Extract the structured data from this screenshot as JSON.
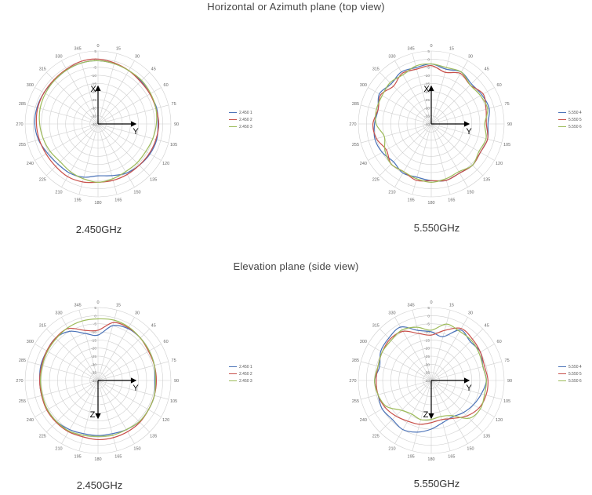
{
  "titles": {
    "top": "Horizontal or Azimuth plane (top view)",
    "bottom": "Elevation plane (side view)"
  },
  "colors": {
    "blue": "#4a72b8",
    "red": "#c8504a",
    "green": "#9dbb59",
    "grid": "#cfcfcf",
    "axis": "#000000"
  },
  "chart_data": [
    {
      "type": "polar-line",
      "id": "az-2450",
      "frequency_label": "2.450GHz",
      "axis_labels": {
        "up": "X",
        "right": "Y"
      },
      "radial_ticks": [
        "5",
        "0",
        "-5",
        "-10",
        "-15",
        "-20",
        "-25",
        "-30",
        "-35",
        "-40"
      ],
      "rlim": [
        -40,
        5
      ],
      "angle_labels": [
        "0",
        "15",
        "30",
        "45",
        "60",
        "75",
        "90",
        "105",
        "120",
        "135",
        "150",
        "165",
        "180",
        "195",
        "210",
        "225",
        "240",
        "255",
        "270",
        "285",
        "300",
        "315",
        "330",
        "345"
      ],
      "series": [
        {
          "name": "2.450 1",
          "color": "#4a72b8",
          "values": [
            -1,
            -1.5,
            -2,
            -2.5,
            -3,
            -2.5,
            -3,
            -2.5,
            -3,
            -4,
            -5,
            -7,
            -8,
            -6,
            -5,
            -5,
            -4,
            -2,
            -1,
            -1,
            -1.5,
            -2,
            -1.5,
            -1
          ]
        },
        {
          "name": "2.450 2",
          "color": "#c8504a",
          "values": [
            0,
            -1,
            -2,
            -3,
            -3,
            -3,
            -2.5,
            -3,
            -3.5,
            -4,
            -4,
            -4,
            -4,
            -3,
            -2.5,
            -3,
            -3,
            -2.5,
            -2,
            -1.5,
            -1.5,
            -1.5,
            -1,
            0
          ]
        },
        {
          "name": "2.450 3",
          "color": "#9dbb59",
          "values": [
            -1,
            -1.5,
            -2,
            -2,
            -2.5,
            -3,
            -4,
            -5,
            -6,
            -6,
            -6,
            -5,
            -4,
            -5,
            -6,
            -7,
            -6,
            -5,
            -4,
            -3,
            -2.5,
            -2,
            -1.5,
            -1
          ]
        }
      ]
    },
    {
      "type": "polar-line",
      "id": "az-5550",
      "frequency_label": "5.550GHz",
      "axis_labels": {
        "up": "X",
        "right": "Y"
      },
      "radial_ticks": [
        "5",
        "0",
        "-5",
        "-10",
        "-15",
        "-20",
        "-25",
        "-30",
        "-35",
        "-40"
      ],
      "rlim": [
        -40,
        5
      ],
      "angle_labels": [
        "0",
        "15",
        "30",
        "45",
        "60",
        "75",
        "90",
        "105",
        "120",
        "135",
        "150",
        "165",
        "180",
        "195",
        "210",
        "225",
        "240",
        "255",
        "270",
        "285",
        "300",
        "315",
        "330",
        "345"
      ],
      "series": [
        {
          "name": "5.550 4",
          "color": "#4a72b8",
          "values": [
            -3,
            -5,
            -3,
            -5,
            -4,
            -3,
            -5,
            -4,
            -5,
            -4,
            -5,
            -4,
            -5,
            -6,
            -5,
            -7,
            -5,
            -4,
            -5,
            -6,
            -3,
            -5,
            -3,
            -4
          ]
        },
        {
          "name": "5.550 5",
          "color": "#c8504a",
          "values": [
            -4,
            -7,
            -4,
            -6,
            -3,
            -5,
            -6,
            -4,
            -5,
            -4,
            -5,
            -4,
            -5,
            -4,
            -6,
            -5,
            -8,
            -5,
            -4,
            -6,
            -4,
            -7,
            -4,
            -5
          ]
        },
        {
          "name": "5.550 6",
          "color": "#9dbb59",
          "values": [
            -3,
            -4,
            -3,
            -6,
            -5,
            -4,
            -7,
            -5,
            -6,
            -4,
            -6,
            -5,
            -4,
            -5,
            -6,
            -5,
            -7,
            -10,
            -6,
            -5,
            -5,
            -4,
            -5,
            -3
          ]
        }
      ]
    },
    {
      "type": "polar-line",
      "id": "el-2450",
      "frequency_label": "2.450GHz",
      "axis_labels": {
        "down": "Z",
        "right": "Y"
      },
      "radial_ticks": [
        "5",
        "0",
        "-5",
        "-10",
        "-15",
        "-20",
        "-25",
        "-30",
        "-35",
        "-40"
      ],
      "rlim": [
        -40,
        5
      ],
      "angle_labels": [
        "0",
        "15",
        "30",
        "45",
        "60",
        "75",
        "90",
        "105",
        "120",
        "135",
        "150",
        "165",
        "180",
        "195",
        "210",
        "225",
        "240",
        "255",
        "270",
        "285",
        "300",
        "315",
        "330",
        "345"
      ],
      "series": [
        {
          "name": "2.450 1",
          "color": "#4a72b8",
          "values": [
            -12,
            -5,
            -3,
            -3,
            -3.5,
            -4,
            -5,
            -4,
            -4,
            -4,
            -5,
            -6,
            -6,
            -6,
            -5,
            -4,
            -4,
            -4,
            -4,
            -3.5,
            -3.5,
            -3,
            -5,
            -10
          ]
        },
        {
          "name": "2.450 2",
          "color": "#c8504a",
          "values": [
            -9,
            -3,
            -2.5,
            -3,
            -4,
            -4,
            -4,
            -4,
            -4,
            -3.5,
            -3.5,
            -3.5,
            -3.5,
            -4,
            -3.5,
            -3.5,
            -3.5,
            -4,
            -4,
            -4,
            -3.5,
            -3,
            -3,
            -8
          ]
        },
        {
          "name": "2.450 3",
          "color": "#9dbb59",
          "values": [
            -2,
            -1.5,
            -2,
            -3,
            -3.5,
            -4,
            -4.5,
            -4,
            -4,
            -4,
            -5,
            -5,
            -5.5,
            -5,
            -4,
            -4,
            -4,
            -4.5,
            -4.5,
            -4.5,
            -4,
            -3.5,
            -2.5,
            -2
          ]
        }
      ]
    },
    {
      "type": "polar-line",
      "id": "el-5550",
      "frequency_label": "5.550GHz",
      "axis_labels": {
        "down": "Z",
        "right": "Y"
      },
      "radial_ticks": [
        "5",
        "0",
        "-5",
        "-10",
        "-15",
        "-20",
        "-25",
        "-30",
        "-35",
        "-40"
      ],
      "rlim": [
        -40,
        5
      ],
      "angle_labels": [
        "0",
        "15",
        "30",
        "45",
        "60",
        "75",
        "90",
        "105",
        "120",
        "135",
        "150",
        "165",
        "180",
        "195",
        "210",
        "225",
        "240",
        "255",
        "270",
        "285",
        "300",
        "315",
        "330",
        "345"
      ],
      "series": [
        {
          "name": "5.550 4",
          "color": "#4a72b8",
          "values": [
            -10,
            -12,
            -4,
            -6,
            -5,
            -7,
            -6,
            -8,
            -10,
            -12,
            -14,
            -13,
            -10,
            -7,
            -5,
            -6,
            -5,
            -6,
            -5,
            -7,
            -4,
            -3,
            -2,
            -8
          ]
        },
        {
          "name": "5.550 5",
          "color": "#c8504a",
          "values": [
            -12,
            -8,
            -3,
            -4,
            -5,
            -6,
            -5,
            -5,
            -6,
            -9,
            -13,
            -15,
            -14,
            -12,
            -11,
            -9,
            -7,
            -6,
            -6,
            -6,
            -5,
            -4,
            -5,
            -10
          ]
        },
        {
          "name": "5.550 6",
          "color": "#9dbb59",
          "values": [
            -9,
            -4,
            -5,
            -5,
            -6,
            -7,
            -6,
            -6,
            -5,
            -7,
            -15,
            -17,
            -16,
            -15,
            -16,
            -14,
            -8,
            -6,
            -5,
            -6,
            -5,
            -5,
            -4,
            -6
          ]
        }
      ]
    }
  ]
}
